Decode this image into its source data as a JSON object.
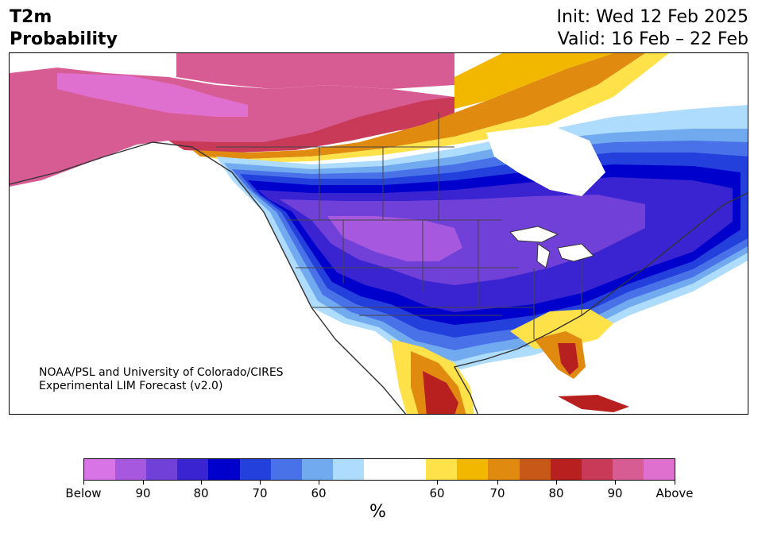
{
  "header": {
    "title_line1": "T2m",
    "title_line2": "Probability",
    "init": "Init: Wed 12 Feb 2025",
    "valid": "Valid: 16 Feb – 22 Feb"
  },
  "credit": {
    "line1": "NOAA/PSL and University of Colorado/CIRES",
    "line2": "Experimental LIM Forecast (v2.0)"
  },
  "colorbar": {
    "colors": [
      "#d874e6",
      "#a659de",
      "#7040d8",
      "#3a24d2",
      "#0000cc",
      "#2440dc",
      "#4a72e8",
      "#72aaf0",
      "#aedcfc",
      "#ffffff",
      "#ffffff",
      "#ffe24a",
      "#f2b800",
      "#e08a10",
      "#c85818",
      "#b82020",
      "#c83a58",
      "#d85c94",
      "#e070d0"
    ],
    "labels": [
      "Below",
      "90",
      "80",
      "70",
      "60",
      "60",
      "70",
      "80",
      "90",
      "Above"
    ],
    "unit": "%"
  },
  "map": {
    "cold_colors": {
      "c90": "#a659de",
      "c85": "#7040d8",
      "c80": "#3a24d2",
      "c75": "#0000cc",
      "c70": "#2440dc",
      "c65": "#4a72e8",
      "c60": "#72aaf0",
      "c55": "#aedcfc"
    },
    "warm_colors": {
      "w55": "#ffe24a",
      "w60": "#f2b800",
      "w65": "#e08a10",
      "w70": "#c85818",
      "w75": "#b82020",
      "w80": "#c83a58",
      "w85": "#d85c94",
      "w90": "#e070d0"
    }
  }
}
